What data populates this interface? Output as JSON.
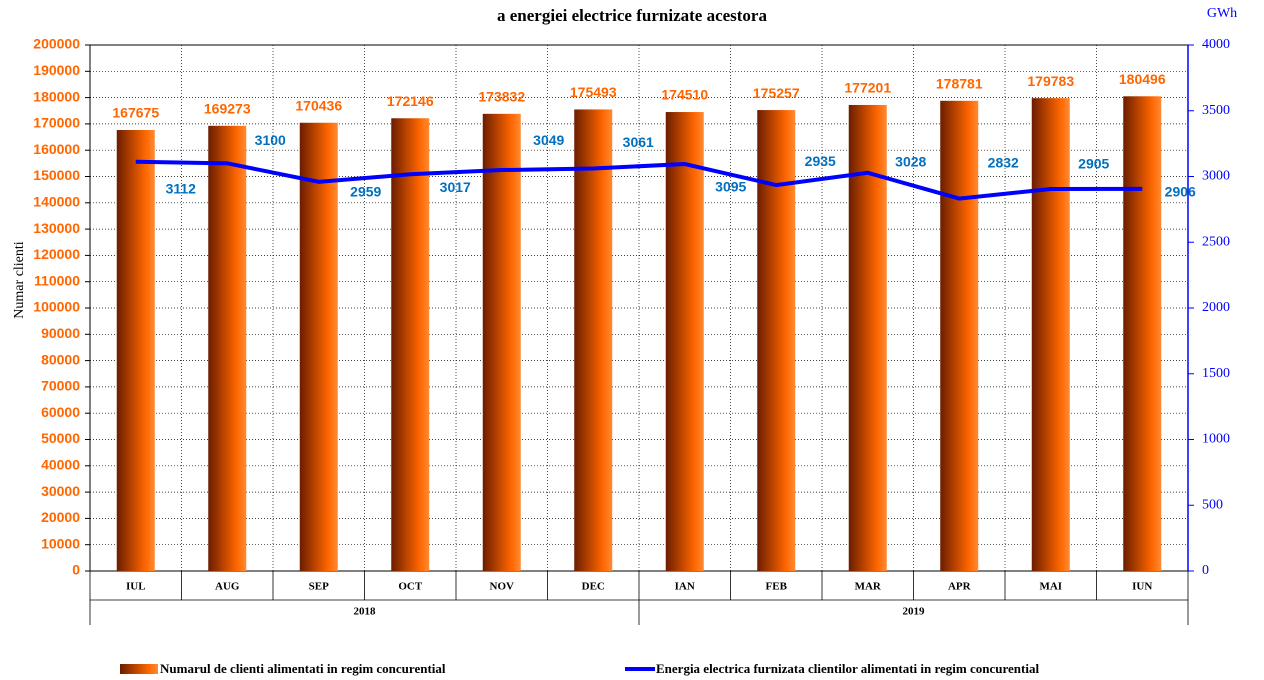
{
  "chart_data": {
    "type": "bar-line",
    "title": "a energiei electrice furnizate acestora",
    "y_label": "Numar clienti",
    "y2_label": "GWh",
    "categories": [
      "IUL",
      "AUG",
      "SEP",
      "OCT",
      "NOV",
      "DEC",
      "IAN",
      "FEB",
      "MAR",
      "APR",
      "MAI",
      "IUN"
    ],
    "x_groups": [
      "2018",
      "2019"
    ],
    "series": [
      {
        "name": "Numarul de clienti alimentati in regim concurential",
        "type": "bar",
        "color": "#ff6600",
        "values": [
          167675,
          169273,
          170436,
          172146,
          173832,
          175493,
          174510,
          175257,
          177201,
          178781,
          179783,
          180496
        ]
      },
      {
        "name": "Energia electrica furnizata clientilor alimentati in regim concurential",
        "type": "line",
        "axis": "y2",
        "color": "#0000ff",
        "label_color": "#0070c0",
        "values": [
          3112,
          3100,
          2959,
          3017,
          3049,
          3061,
          3095,
          2935,
          3028,
          2832,
          2905,
          2906
        ]
      }
    ],
    "ylim": [
      0,
      200000
    ],
    "yticks": [
      0,
      10000,
      20000,
      30000,
      40000,
      50000,
      60000,
      70000,
      80000,
      90000,
      100000,
      110000,
      120000,
      130000,
      140000,
      150000,
      160000,
      170000,
      180000,
      190000,
      200000
    ],
    "y2lim": [
      0,
      4000
    ],
    "y2ticks": [
      0,
      500,
      1000,
      1500,
      2000,
      2500,
      3000,
      3500,
      4000
    ],
    "grid": true
  }
}
